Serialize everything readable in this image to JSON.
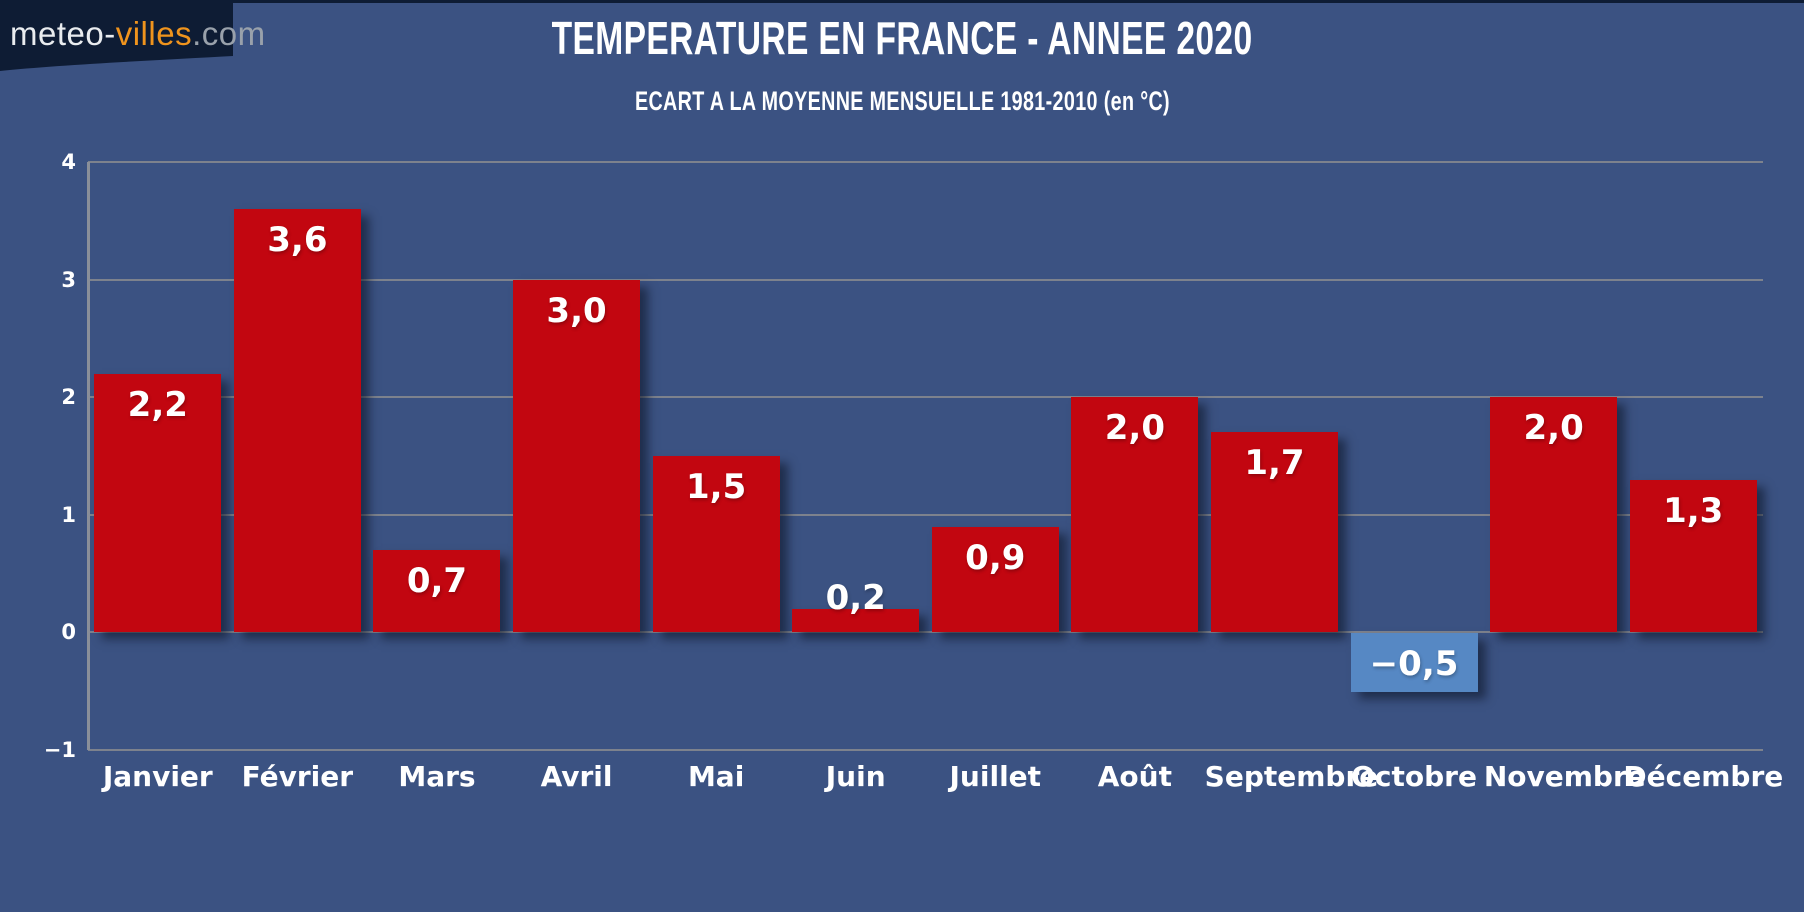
{
  "logo": {
    "text_white": "meteo-",
    "text_orange": "villes",
    "text_gray": ".com"
  },
  "header": {
    "title": "TEMPERATURE EN FRANCE - ANNEE 2020",
    "subtitle": "ECART A LA MOYENNE MENSUELLE 1981-2010 (en °C)"
  },
  "chart_data": {
    "type": "bar",
    "title": "TEMPERATURE EN FRANCE - ANNEE 2020",
    "subtitle": "ECART A LA MOYENNE MENSUELLE 1981-2010 (en °C)",
    "categories": [
      "Janvier",
      "Février",
      "Mars",
      "Avril",
      "Mai",
      "Juin",
      "Juillet",
      "Août",
      "Septembre",
      "Octobre",
      "Novembre",
      "Décembre"
    ],
    "values": [
      2.2,
      3.6,
      0.7,
      3.0,
      1.5,
      0.2,
      0.9,
      2.0,
      1.7,
      -0.5,
      2.0,
      1.3
    ],
    "value_labels": [
      "2,2",
      "3,6",
      "0,7",
      "3,0",
      "1,5",
      "0,2",
      "0,9",
      "2,0",
      "1,7",
      "−0,5",
      "2,0",
      "1,3"
    ],
    "xlabel": "",
    "ylabel": "",
    "ylim": [
      -1,
      4
    ],
    "yticks": [
      4,
      3,
      2,
      1,
      0,
      -1
    ],
    "ytick_labels": [
      "4",
      "3",
      "2",
      "1",
      "0",
      "−1"
    ],
    "grid": true,
    "legend": false,
    "colors": {
      "bar_positive": "#c20610",
      "bar_negative": "#5688c4",
      "background": "#3b5282",
      "gridline": "#7d828d",
      "axis": "#8a8f99",
      "text": "#ffffff",
      "logo_bg": "#0e1c34",
      "logo_text_white": "#e9ecef",
      "logo_text_orange": "#f0941d",
      "logo_text_gray": "#99a1ab"
    }
  }
}
